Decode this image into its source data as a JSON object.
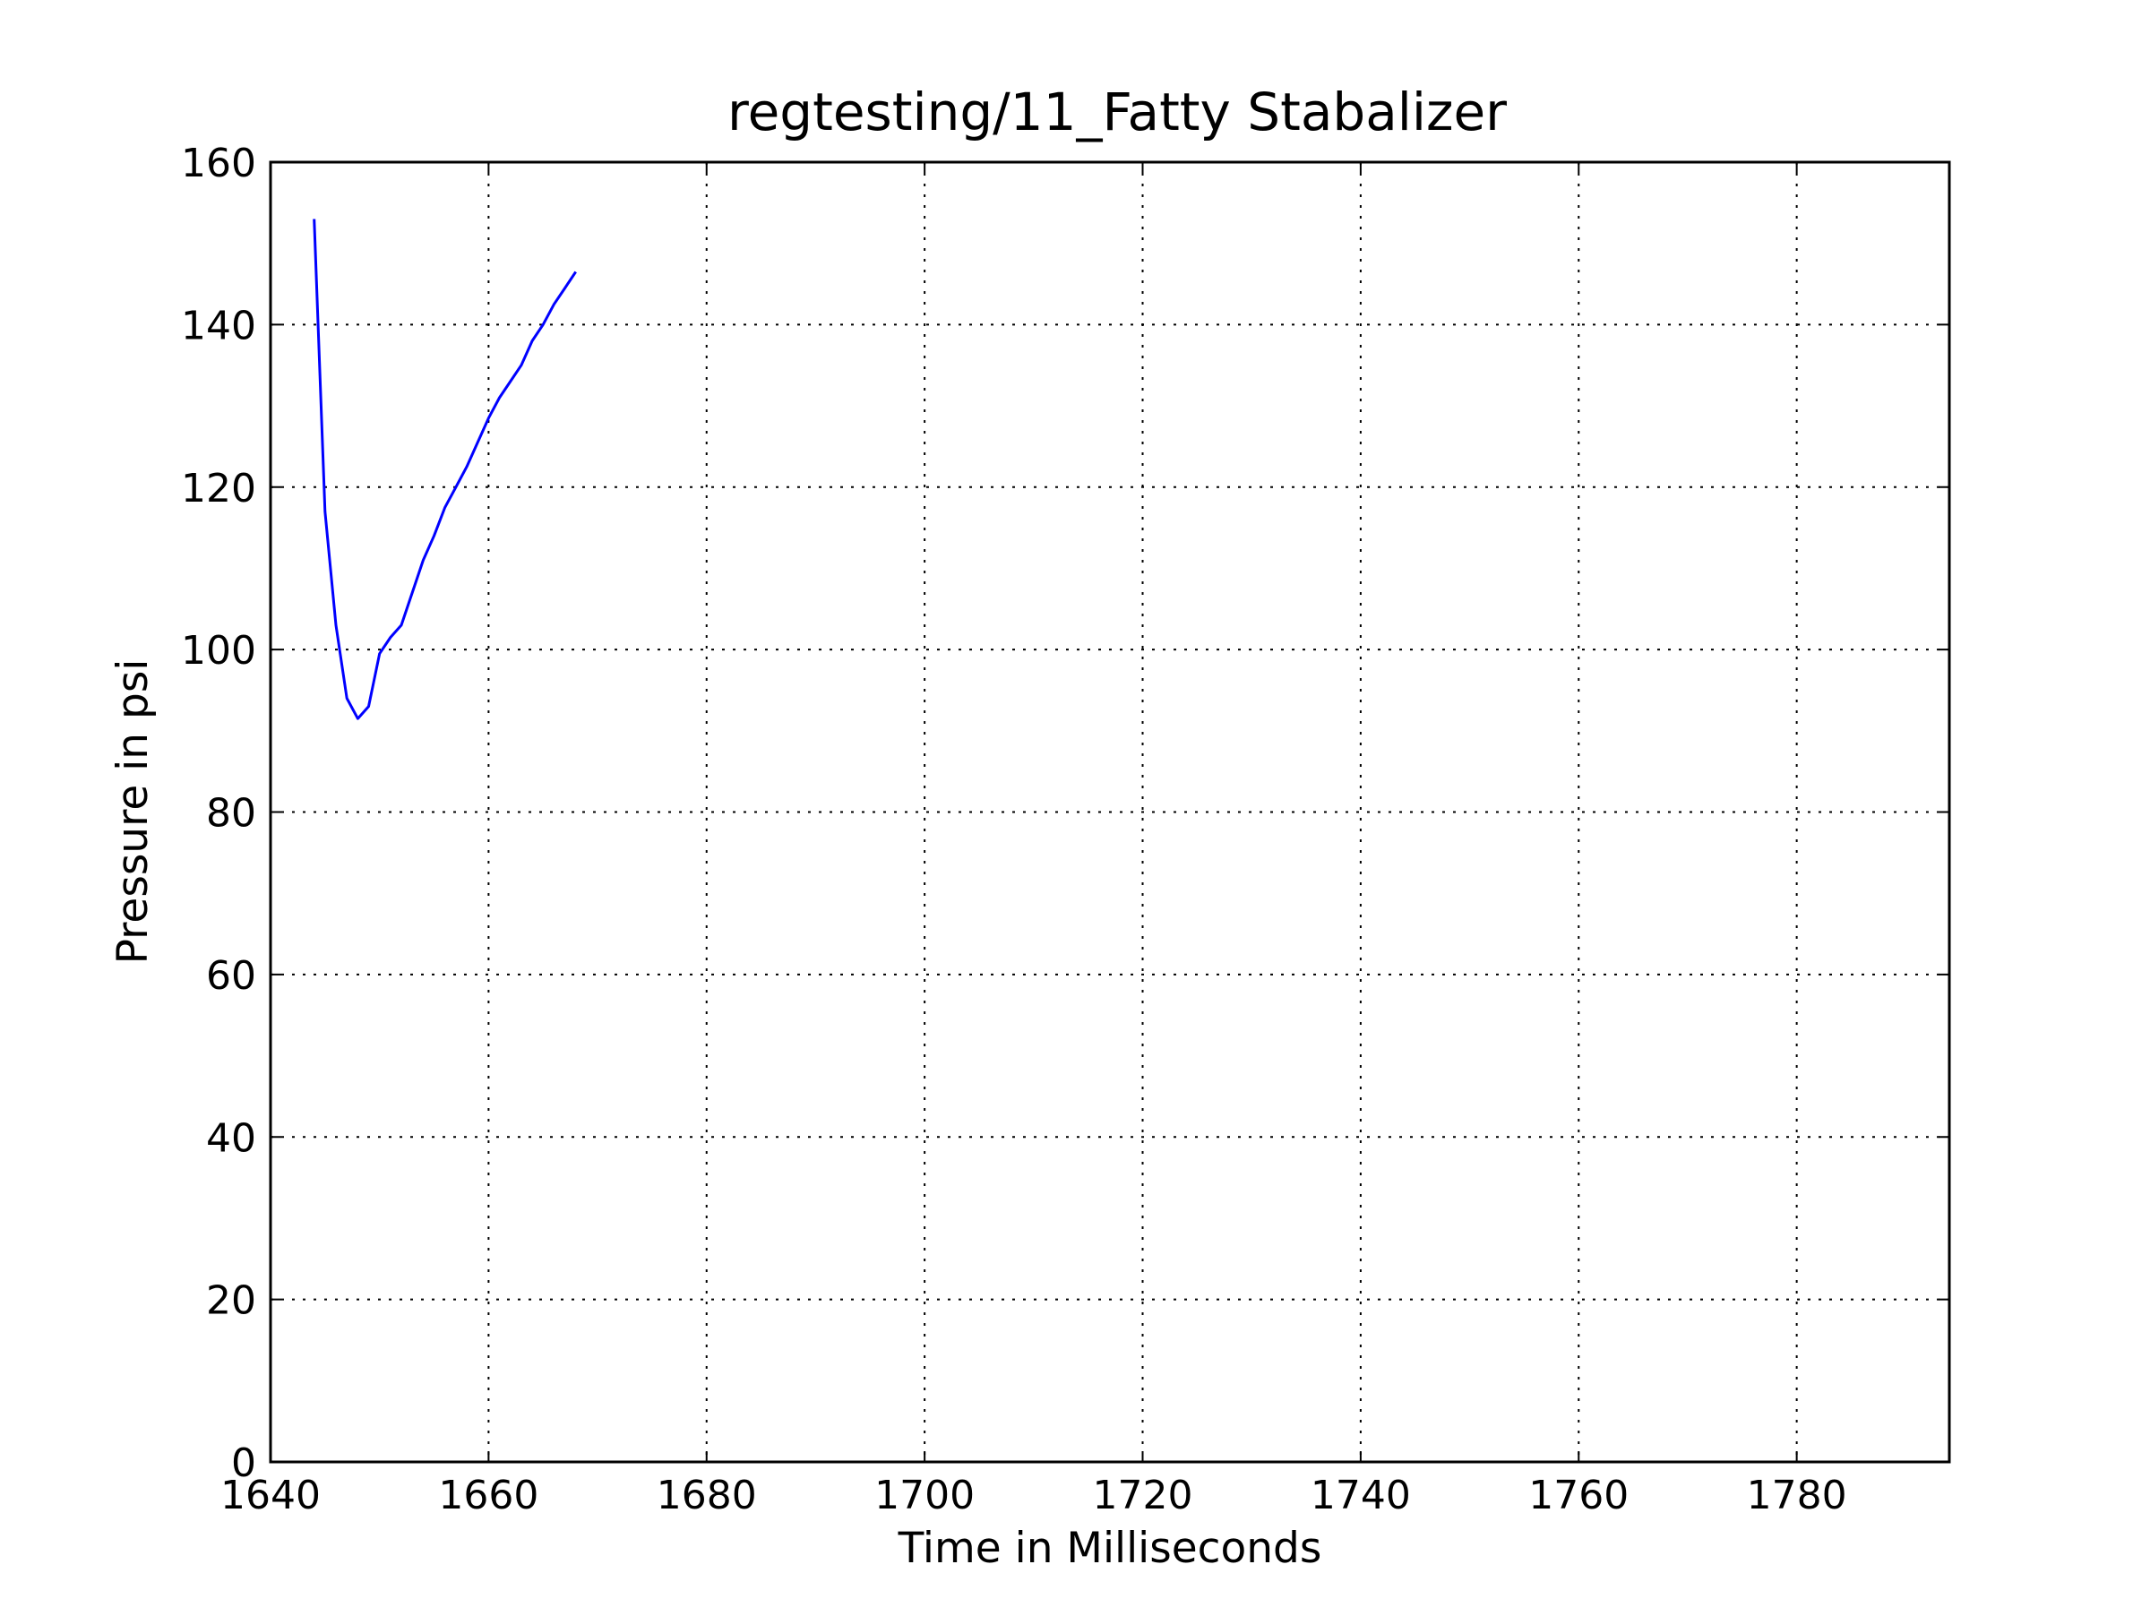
{
  "chart_data": {
    "type": "line",
    "title": "regtesting/11_Fatty Stabalizer",
    "xlabel": "Time in Milliseconds",
    "ylabel": "Pressure in psi",
    "xlim": [
      1640,
      1794
    ],
    "ylim": [
      0,
      160
    ],
    "xticks": [
      1640,
      1660,
      1680,
      1700,
      1720,
      1740,
      1760,
      1780
    ],
    "yticks": [
      0,
      20,
      40,
      60,
      80,
      100,
      120,
      140,
      160
    ],
    "grid": true,
    "line_color": "#0000ff",
    "series": [
      {
        "x": [
          1644,
          1645,
          1646,
          1647,
          1648,
          1649,
          1650,
          1651,
          1652,
          1653,
          1654,
          1655,
          1656,
          1657,
          1658,
          1659,
          1660,
          1661,
          1662,
          1663,
          1664,
          1665,
          1666,
          1667,
          1668
        ],
        "values": [
          153,
          117,
          103,
          94,
          91.5,
          93,
          99.5,
          101.5,
          103,
          107,
          111,
          114,
          117.5,
          120,
          122.5,
          125.5,
          128.5,
          131,
          133,
          135,
          138,
          140,
          142.5,
          144.5,
          146.5
        ]
      }
    ]
  }
}
